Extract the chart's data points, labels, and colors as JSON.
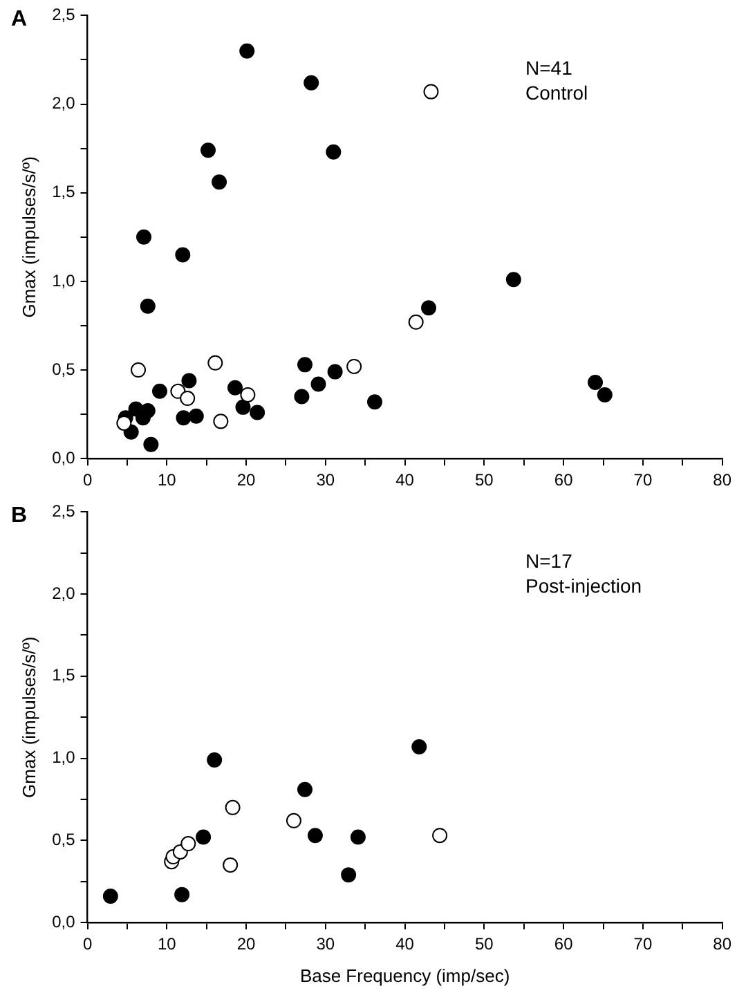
{
  "chart_data": [
    {
      "type": "scatter",
      "title": "A",
      "ylabel": "Gmax (impulses/s/º)",
      "annotations": [
        "N=41",
        "Control"
      ],
      "marker": "circle",
      "grid": false,
      "legend": false,
      "xlim": [
        0,
        80
      ],
      "xticks": [
        0,
        {
          "value": 5,
          "label": null
        },
        10,
        {
          "value": 15,
          "label": null
        },
        20,
        {
          "value": 25,
          "label": null
        },
        30,
        {
          "value": 35,
          "label": null
        },
        40,
        {
          "value": 45,
          "label": null
        },
        50,
        {
          "value": 55,
          "label": null
        },
        60,
        {
          "value": 65,
          "label": null
        },
        70,
        {
          "value": 75,
          "label": null
        },
        80
      ],
      "ylim": [
        0,
        2.5
      ],
      "yticks": [
        {
          "value": 0,
          "label": "0,0"
        },
        {
          "value": 0.25,
          "label": null
        },
        {
          "value": 0.5,
          "label": "0,5"
        },
        {
          "value": 0.75,
          "label": null
        },
        {
          "value": 1,
          "label": "1,0"
        },
        {
          "value": 1.25,
          "label": null
        },
        {
          "value": 1.5,
          "label": "1,5"
        },
        {
          "value": 1.75,
          "label": null
        },
        {
          "value": 2,
          "label": "2,0"
        },
        {
          "value": 2.25,
          "label": null
        },
        {
          "value": 2.5,
          "label": "2,5"
        }
      ],
      "series": [
        {
          "color": "#000000",
          "x": [
            20.1,
            28.2,
            31.0,
            15.2,
            16.6,
            7.1,
            12.0,
            7.6,
            53.7,
            43.0,
            27.4,
            31.2,
            29.1,
            27.0,
            36.2,
            64.0,
            65.2,
            18.6,
            19.6,
            21.4,
            12.8,
            12.1,
            13.7,
            9.1,
            6.1,
            7.6,
            7.0,
            4.8,
            5.5,
            8.0
          ],
          "values": [
            2.3,
            2.12,
            1.73,
            1.74,
            1.56,
            1.25,
            1.15,
            0.86,
            1.01,
            0.85,
            0.53,
            0.49,
            0.42,
            0.35,
            0.32,
            0.43,
            0.36,
            0.4,
            0.29,
            0.26,
            0.44,
            0.23,
            0.24,
            0.38,
            0.28,
            0.27,
            0.23,
            0.23,
            0.15,
            0.08
          ]
        },
        {
          "color": "#ffffff",
          "x": [
            43.3,
            41.4,
            33.6,
            16.1,
            6.4,
            11.4,
            12.6,
            20.2,
            16.8,
            4.6
          ],
          "values": [
            2.07,
            0.77,
            0.52,
            0.54,
            0.5,
            0.38,
            0.34,
            0.36,
            0.21,
            0.2
          ]
        }
      ]
    },
    {
      "type": "scatter",
      "title": "B",
      "xlabel": "Base Frequency (imp/sec)",
      "ylabel": "Gmax (impulses/s/º)",
      "annotations": [
        "N=17",
        "Post-injection"
      ],
      "marker": "circle",
      "grid": false,
      "legend": false,
      "xlim": [
        0,
        80
      ],
      "xticks": [
        0,
        {
          "value": 5,
          "label": null
        },
        10,
        {
          "value": 15,
          "label": null
        },
        20,
        {
          "value": 25,
          "label": null
        },
        30,
        {
          "value": 35,
          "label": null
        },
        40,
        {
          "value": 45,
          "label": null
        },
        50,
        {
          "value": 55,
          "label": null
        },
        60,
        {
          "value": 65,
          "label": null
        },
        70,
        {
          "value": 75,
          "label": null
        },
        80
      ],
      "ylim": [
        0,
        2.5
      ],
      "yticks": [
        {
          "value": 0,
          "label": "0,0"
        },
        {
          "value": 0.25,
          "label": null
        },
        {
          "value": 0.5,
          "label": "0,5"
        },
        {
          "value": 0.75,
          "label": null
        },
        {
          "value": 1,
          "label": "1,0"
        },
        {
          "value": 1.25,
          "label": null
        },
        {
          "value": 1.5,
          "label": "1,5"
        },
        {
          "value": 1.75,
          "label": null
        },
        {
          "value": 2,
          "label": "2,0"
        },
        {
          "value": 2.25,
          "label": null
        },
        {
          "value": 2.5,
          "label": "2,5"
        }
      ],
      "series": [
        {
          "color": "#000000",
          "x": [
            2.9,
            11.9,
            16.0,
            14.6,
            27.4,
            28.7,
            34.1,
            32.9,
            41.8
          ],
          "values": [
            0.16,
            0.17,
            0.99,
            0.52,
            0.81,
            0.53,
            0.52,
            0.29,
            1.07
          ]
        },
        {
          "color": "#ffffff",
          "x": [
            18.3,
            26.0,
            44.4,
            18.0,
            10.6,
            10.8,
            11.7,
            12.7
          ],
          "values": [
            0.7,
            0.62,
            0.53,
            0.35,
            0.37,
            0.4,
            0.43,
            0.48
          ]
        }
      ]
    }
  ]
}
